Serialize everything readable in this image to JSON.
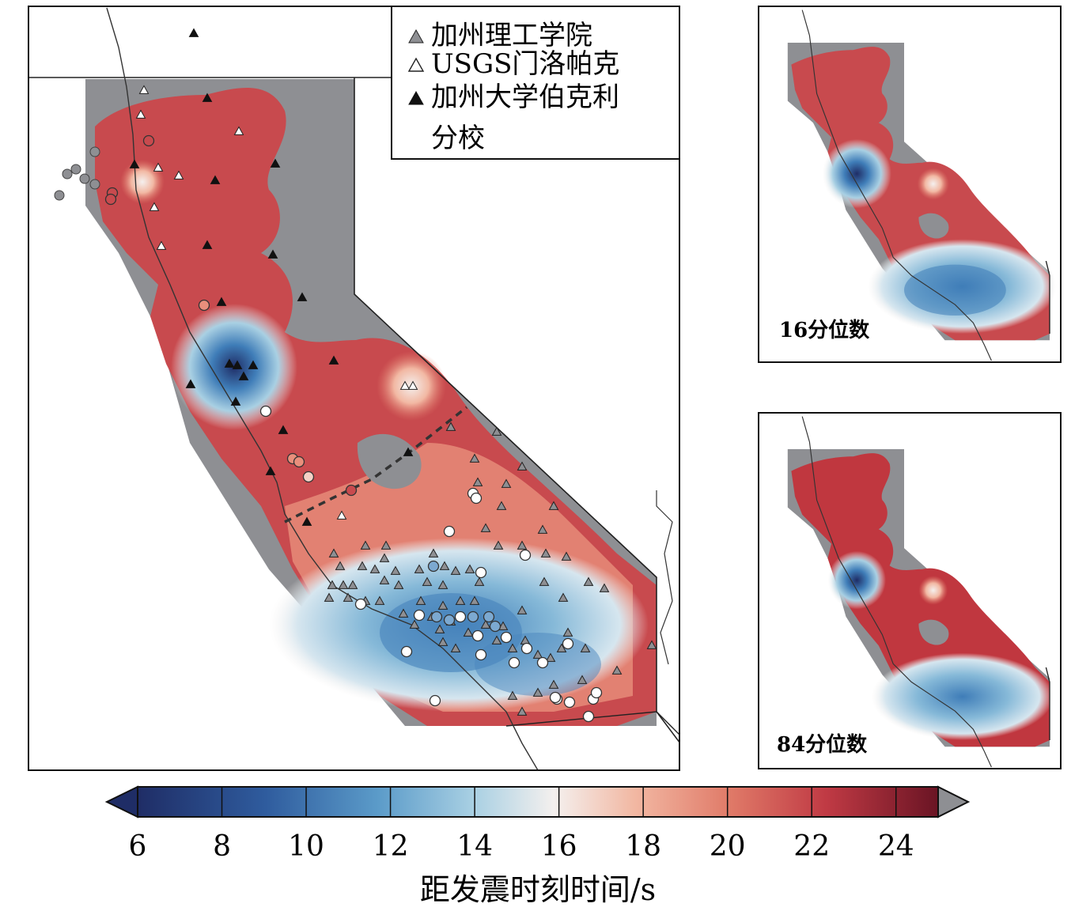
{
  "legend": {
    "items": [
      {
        "label": "加州理工学院",
        "marker": "gray-triangle"
      },
      {
        "label": "USGS门洛帕克",
        "marker": "white-triangle"
      },
      {
        "label": "加州大学伯克利",
        "marker": "black-triangle"
      }
    ],
    "last_line": "分校"
  },
  "insets": {
    "upper_label": "16分位数",
    "lower_label": "84分位数"
  },
  "colorbar": {
    "ticks": [
      "6",
      "8",
      "10",
      "12",
      "14",
      "16",
      "18",
      "20",
      "22",
      "24"
    ],
    "range": [
      6,
      25
    ],
    "extend": "both",
    "over_color": "#8e8f93",
    "title": "距发震时刻时间/s"
  },
  "colors": {
    "dark_blue": "#1f2d66",
    "blue": "#3f7db8",
    "light_blue": "#9ec7de",
    "white": "#f4f0ee",
    "pink": "#efa28b",
    "red": "#c9454a",
    "dark_red": "#6a1424",
    "gray_mask": "#8e8f93",
    "dashed_line": "#333333"
  },
  "icons": {
    "gray-triangle": "▲ gray",
    "white-triangle": "△",
    "black-triangle": "▲ black"
  }
}
